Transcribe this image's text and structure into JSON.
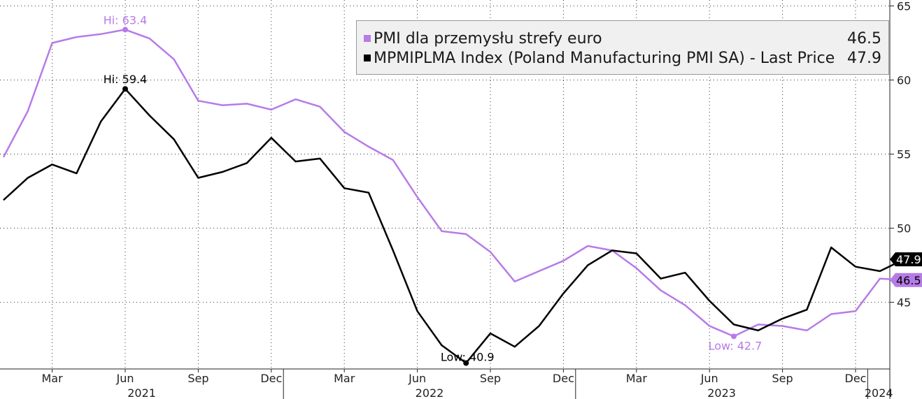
{
  "chart_data": {
    "type": "line",
    "x_unit": "month",
    "x": [
      "2021-01",
      "2021-02",
      "2021-03",
      "2021-04",
      "2021-05",
      "2021-06",
      "2021-07",
      "2021-08",
      "2021-09",
      "2021-10",
      "2021-11",
      "2021-12",
      "2022-01",
      "2022-02",
      "2022-03",
      "2022-04",
      "2022-05",
      "2022-06",
      "2022-07",
      "2022-08",
      "2022-09",
      "2022-10",
      "2022-11",
      "2022-12",
      "2023-01",
      "2023-02",
      "2023-03",
      "2023-04",
      "2023-05",
      "2023-06",
      "2023-07",
      "2023-08",
      "2023-09",
      "2023-10",
      "2023-11",
      "2023-12",
      "2024-01",
      "2024-02"
    ],
    "series": [
      {
        "name": "PMI dla przemysłu strefy euro",
        "color": "#b77be8",
        "last_value": "46.5",
        "values": [
          54.8,
          57.9,
          62.5,
          62.9,
          63.1,
          63.4,
          62.8,
          61.4,
          58.6,
          58.3,
          58.4,
          58.0,
          58.7,
          58.2,
          56.5,
          55.5,
          54.6,
          52.1,
          49.8,
          49.6,
          48.4,
          46.4,
          47.1,
          47.8,
          48.8,
          48.5,
          47.3,
          45.8,
          44.8,
          43.4,
          42.7,
          43.5,
          43.4,
          43.1,
          44.2,
          44.4,
          46.6,
          46.5
        ],
        "markers": [
          {
            "label": "Hi: 63.4",
            "x": "2021-06",
            "y": 63.4
          },
          {
            "label": "Low: 42.7",
            "x": "2023-07",
            "y": 42.7
          }
        ]
      },
      {
        "name": "MPMIPLMA Index (Poland Manufacturing PMI SA) - Last Price",
        "color": "#000000",
        "last_value": "47.9",
        "values": [
          51.9,
          53.4,
          54.3,
          53.7,
          57.2,
          59.4,
          57.6,
          56.0,
          53.4,
          53.8,
          54.4,
          56.1,
          54.5,
          54.7,
          52.7,
          52.4,
          48.5,
          44.4,
          42.1,
          40.9,
          42.9,
          42.0,
          43.4,
          45.6,
          47.5,
          48.5,
          48.3,
          46.6,
          47.0,
          45.1,
          43.5,
          43.1,
          43.9,
          44.5,
          48.7,
          47.4,
          47.1,
          47.9
        ],
        "markers": [
          {
            "label": "Hi: 59.4",
            "x": "2021-06",
            "y": 59.4
          },
          {
            "label": "Low: 40.9",
            "x": "2022-08",
            "y": 40.9
          }
        ]
      }
    ],
    "y_axis": {
      "position": "right",
      "ylim": [
        40.5,
        65.4
      ],
      "ticks": [
        45,
        50,
        55,
        60,
        65
      ],
      "tick_labels": [
        "45",
        "50",
        "55",
        "60",
        "65"
      ]
    },
    "x_axis": {
      "month_ticks": [
        {
          "x": "2021-03",
          "label": "Mar"
        },
        {
          "x": "2021-06",
          "label": "Jun"
        },
        {
          "x": "2021-09",
          "label": "Sep"
        },
        {
          "x": "2021-12",
          "label": "Dec"
        },
        {
          "x": "2022-03",
          "label": "Mar"
        },
        {
          "x": "2022-06",
          "label": "Jun"
        },
        {
          "x": "2022-09",
          "label": "Sep"
        },
        {
          "x": "2022-12",
          "label": "Dec"
        },
        {
          "x": "2023-03",
          "label": "Mar"
        },
        {
          "x": "2023-06",
          "label": "Jun"
        },
        {
          "x": "2023-09",
          "label": "Sep"
        },
        {
          "x": "2023-12",
          "label": "Dec"
        }
      ],
      "years": [
        {
          "label": "2021"
        },
        {
          "label": "2022"
        },
        {
          "label": "2023"
        },
        {
          "label": "2024"
        }
      ]
    },
    "grid": true,
    "legend": "top-right"
  }
}
